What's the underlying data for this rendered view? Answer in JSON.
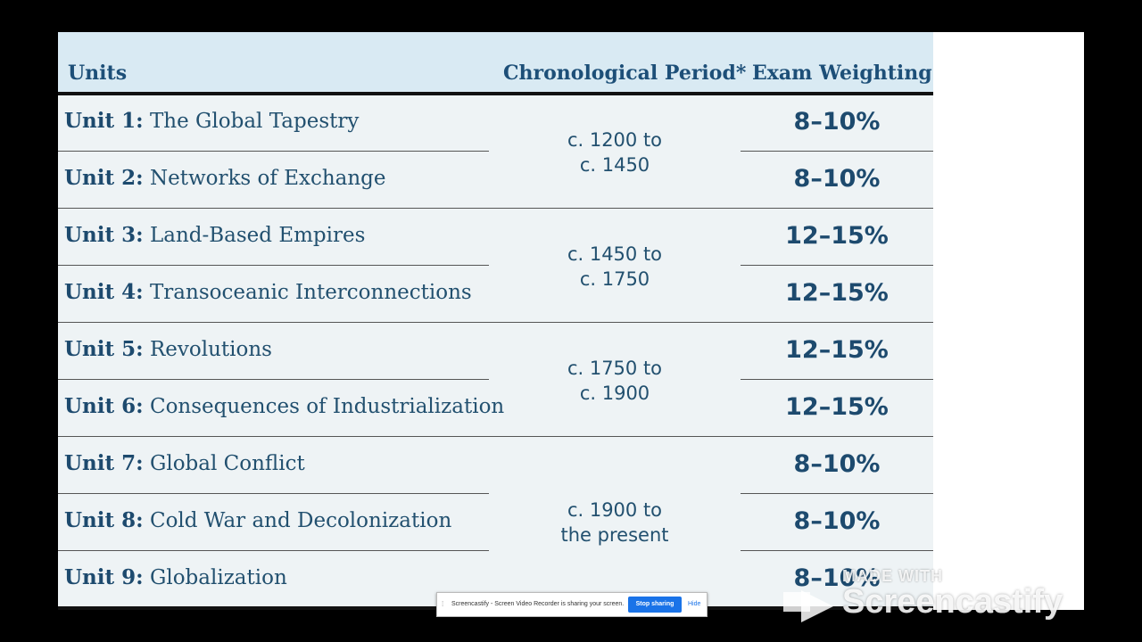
{
  "table": {
    "headers": {
      "units": "Units",
      "period": "Chronological Period*",
      "weighting": "Exam Weighting"
    },
    "units": [
      {
        "num": "Unit 1:",
        "title": "The Global Tapestry",
        "weight": "8–10%"
      },
      {
        "num": "Unit 2:",
        "title": "Networks of Exchange",
        "weight": "8–10%"
      },
      {
        "num": "Unit 3:",
        "title": "Land-Based Empires",
        "weight": "12–15%"
      },
      {
        "num": "Unit 4:",
        "title": "Transoceanic Interconnections",
        "weight": "12–15%"
      },
      {
        "num": "Unit 5:",
        "title": "Revolutions",
        "weight": "12–15%"
      },
      {
        "num": "Unit 6:",
        "title": "Consequences of Industrialization",
        "weight": "12–15%"
      },
      {
        "num": "Unit 7:",
        "title": "Global Conflict",
        "weight": "8–10%"
      },
      {
        "num": "Unit 8:",
        "title": "Cold War and Decolonization",
        "weight": "8–10%"
      },
      {
        "num": "Unit 9:",
        "title": "Globalization",
        "weight": "8–10%"
      }
    ],
    "periods": [
      {
        "line1": "c. 1200 to",
        "line2": "c. 1450"
      },
      {
        "line1": "c. 1450 to",
        "line2": "c. 1750"
      },
      {
        "line1": "c. 1750 to",
        "line2": "c. 1900"
      },
      {
        "line1": "c. 1900 to",
        "line2": "the present"
      }
    ]
  },
  "share_bar": {
    "text": "Screencastify - Screen Video Recorder is sharing your screen.",
    "stop_label": "Stop sharing",
    "hide_label": "Hide"
  },
  "watermark": {
    "made_with": "MADE WITH",
    "brand": "Screencastify"
  },
  "colors": {
    "header_bg": "#d9eaf3",
    "table_bg": "#eef3f5",
    "text_dark_blue": "#1d4a6e",
    "stop_button": "#1a73e8"
  }
}
